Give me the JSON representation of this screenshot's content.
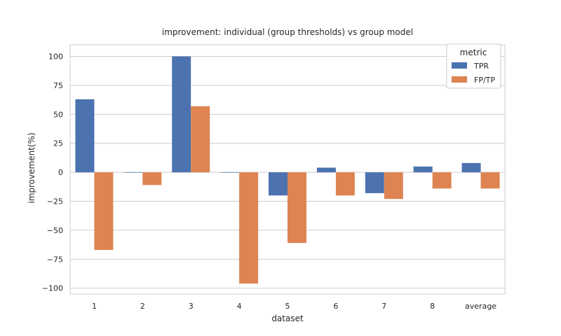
{
  "chart_data": {
    "type": "bar",
    "title": "improvement: individual (group thresholds)  vs  group model",
    "xlabel": "dataset",
    "ylabel": "improvement(%)",
    "categories": [
      "1",
      "2",
      "3",
      "4",
      "5",
      "6",
      "7",
      "8",
      "average"
    ],
    "series": [
      {
        "name": "TPR",
        "color": "#4c72b0",
        "values": [
          63,
          0,
          100,
          0,
          -20,
          4,
          -18,
          5,
          8
        ]
      },
      {
        "name": "FP/TP",
        "color": "#dd8452",
        "values": [
          -67,
          -11,
          57,
          -96,
          -61,
          -20,
          -23,
          -14,
          -14
        ]
      }
    ],
    "ylim": [
      -105,
      110
    ],
    "yticks": [
      100,
      75,
      50,
      25,
      0,
      -25,
      -50,
      -75,
      -100
    ],
    "ytick_labels": [
      "100",
      "75",
      "50",
      "25",
      "0",
      "−25",
      "−50",
      "−75",
      "−100"
    ],
    "grid": true,
    "legend": {
      "title": "metric",
      "placement": "top-right"
    }
  }
}
